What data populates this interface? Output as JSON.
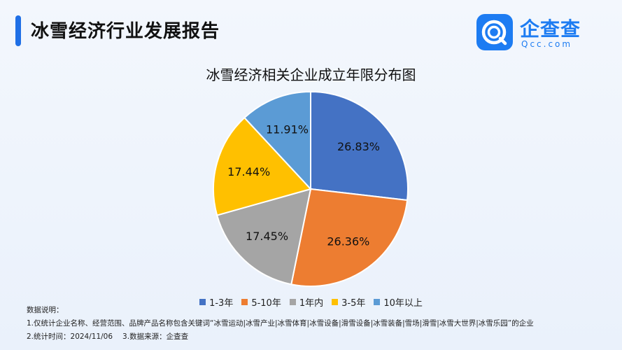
{
  "header": {
    "title": "冰雪经济行业发展报告"
  },
  "logo": {
    "name": "企查查",
    "domain": "Qcc.com",
    "icon": "qcc-logo-icon",
    "color": "#1d7cf2"
  },
  "chart_data": {
    "type": "pie",
    "title": "冰雪经济相关企业成立年限分布图",
    "categories": [
      "1-3年",
      "5-10年",
      "1年内",
      "3-5年",
      "10年以上"
    ],
    "values": [
      26.83,
      26.36,
      17.45,
      17.44,
      11.91
    ],
    "labels": [
      "26.83%",
      "26.36%",
      "17.45%",
      "17.44%",
      "11.91%"
    ],
    "colors": [
      "#4472c4",
      "#ed7d31",
      "#a5a5a5",
      "#ffc000",
      "#5b9bd5"
    ],
    "legend_position": "bottom"
  },
  "notes": {
    "heading": "数据说明：",
    "line1": "1.仅统计企业名称、经营范围、品牌产品名称包含关键词“冰雪运动|冰雪产业|冰雪体育|冰雪设备|滑雪设备|冰雪装备|雪场|滑雪|冰雪大世界|冰雪乐园”的企业",
    "line2a": "2.统计时间：2024/11/06",
    "line2b": "3.数据来源：企查查"
  }
}
